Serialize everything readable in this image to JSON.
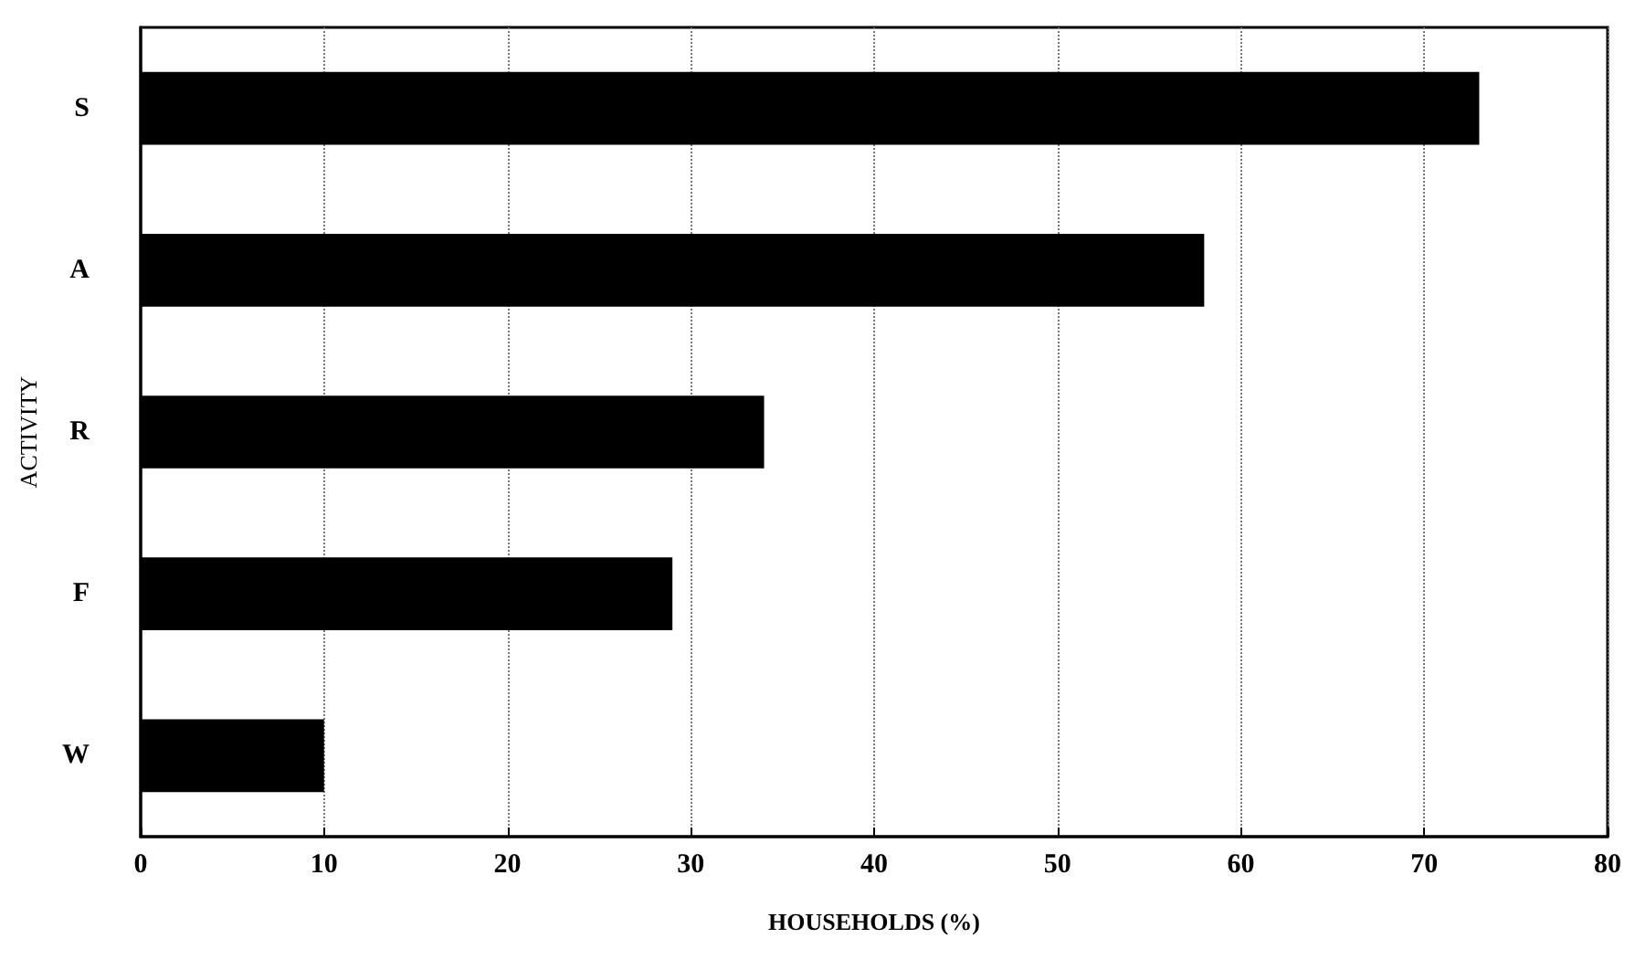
{
  "chart_data": {
    "type": "bar",
    "orientation": "horizontal",
    "xlabel": "HOUSEHOLDS (%)",
    "ylabel": "ACTIVITY",
    "categories": [
      "S",
      "A",
      "R",
      "F",
      "W"
    ],
    "values": [
      73,
      58,
      34,
      29,
      10
    ],
    "color": "#000000",
    "xlim": [
      0,
      80
    ],
    "xticks": [
      0,
      10,
      20,
      30,
      40,
      50,
      60,
      70,
      80
    ],
    "grid": "x"
  }
}
